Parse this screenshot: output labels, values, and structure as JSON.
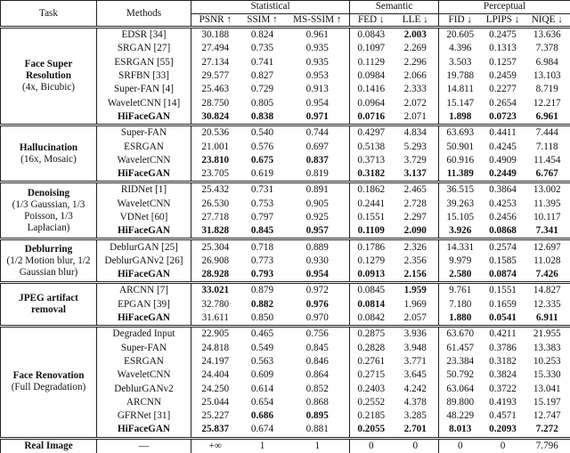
{
  "table": {
    "header": {
      "task": "Task",
      "methods": "Methods",
      "groups": [
        {
          "label": "Statistical",
          "columns": [
            "PSNR ↑",
            "SSIM ↑",
            "MS-SSIM ↑"
          ]
        },
        {
          "label": "Semantic",
          "columns": [
            "FED ↓",
            "LLE ↓"
          ]
        },
        {
          "label": "Perceptual",
          "columns": [
            "FID ↓",
            "LPIPS ↓",
            "NIQE ↓"
          ]
        }
      ]
    },
    "sections": [
      {
        "task": "Face Super Resolution",
        "detail": "(4x, Bicubic)",
        "rows": [
          {
            "method": "EDSR [34]",
            "values": [
              "30.188",
              "0.824",
              "0.961",
              "0.0843",
              "2.003",
              "20.605",
              "0.2475",
              "13.636"
            ],
            "bold": [
              5
            ]
          },
          {
            "method": "SRGAN [27]",
            "values": [
              "27.494",
              "0.735",
              "0.935",
              "0.1097",
              "2.269",
              "4.396",
              "0.1313",
              "7.378"
            ],
            "bold": []
          },
          {
            "method": "ESRGAN [55]",
            "values": [
              "27.134",
              "0.741",
              "0.935",
              "0.1129",
              "2.296",
              "3.503",
              "0.1257",
              "6.984"
            ],
            "bold": []
          },
          {
            "method": "SRFBN [33]",
            "values": [
              "29.577",
              "0.827",
              "0.953",
              "0.0984",
              "2.066",
              "19.788",
              "0.2459",
              "13.103"
            ],
            "bold": []
          },
          {
            "method": "Super-FAN [4]",
            "values": [
              "25.463",
              "0.729",
              "0.913",
              "0.1416",
              "2.333",
              "14.811",
              "0.2277",
              "8.719"
            ],
            "bold": []
          },
          {
            "method": "WaveletCNN [14]",
            "values": [
              "28.750",
              "0.805",
              "0.954",
              "0.0964",
              "2.072",
              "15.147",
              "0.2654",
              "12.217"
            ],
            "bold": []
          },
          {
            "method": "HiFaceGAN",
            "values": [
              "30.824",
              "0.838",
              "0.971",
              "0.0716",
              "2.071",
              "1.898",
              "0.0723",
              "6.961"
            ],
            "bold": [
              0,
              1,
              2,
              3,
              4,
              6,
              7,
              8
            ]
          }
        ]
      },
      {
        "task": "Hallucination",
        "detail": "(16x, Mosaic)",
        "rows": [
          {
            "method": "Super-FAN",
            "values": [
              "20.536",
              "0.540",
              "0.744",
              "0.4297",
              "4.834",
              "63.693",
              "0.4411",
              "7.444"
            ],
            "bold": []
          },
          {
            "method": "ESRGAN",
            "values": [
              "21.001",
              "0.576",
              "0.697",
              "0.5138",
              "5.293",
              "50.901",
              "0.4245",
              "7.118"
            ],
            "bold": []
          },
          {
            "method": "WaveletCNN",
            "values": [
              "23.810",
              "0.675",
              "0.837",
              "0.3713",
              "3.729",
              "60.916",
              "0.4909",
              "11.454"
            ],
            "bold": [
              1,
              2,
              3
            ]
          },
          {
            "method": "HiFaceGAN",
            "values": [
              "23.705",
              "0.619",
              "0.819",
              "0.3182",
              "3.137",
              "11.389",
              "0.2449",
              "6.767"
            ],
            "bold": [
              0,
              4,
              5,
              6,
              7,
              8
            ]
          }
        ]
      },
      {
        "task": "Denoising",
        "detail": "(1/3 Gaussian, 1/3 Poisson, 1/3 Laplacian)",
        "rows": [
          {
            "method": "RIDNet [1]",
            "values": [
              "25.432",
              "0.731",
              "0.891",
              "0.1862",
              "2.465",
              "36.515",
              "0.3864",
              "13.002"
            ],
            "bold": []
          },
          {
            "method": "WaveletCNN",
            "values": [
              "26.530",
              "0.753",
              "0.905",
              "0.2441",
              "2.728",
              "39.263",
              "0.4253",
              "11.395"
            ],
            "bold": []
          },
          {
            "method": "VDNet [60]",
            "values": [
              "27.718",
              "0.797",
              "0.925",
              "0.1551",
              "2.297",
              "15.105",
              "0.2456",
              "10.117"
            ],
            "bold": []
          },
          {
            "method": "HiFaceGAN",
            "values": [
              "31.828",
              "0.845",
              "0.957",
              "0.1109",
              "2.090",
              "3.926",
              "0.0868",
              "7.341"
            ],
            "bold": [
              0,
              1,
              2,
              3,
              4,
              5,
              6,
              7,
              8
            ]
          }
        ]
      },
      {
        "task": "Deblurring",
        "detail": "(1/2 Motion blur, 1/2 Gaussian blur)",
        "rows": [
          {
            "method": "DeblurGAN [25]",
            "values": [
              "25.304",
              "0.718",
              "0.889",
              "0.1786",
              "2.326",
              "14.331",
              "0.2574",
              "12.697"
            ],
            "bold": []
          },
          {
            "method": "DeblurGANv2 [26]",
            "values": [
              "26.908",
              "0.773",
              "0.930",
              "0.1279",
              "2.356",
              "9.979",
              "0.1585",
              "11.028"
            ],
            "bold": []
          },
          {
            "method": "HiFaceGAN",
            "values": [
              "28.928",
              "0.793",
              "0.954",
              "0.0913",
              "2.156",
              "2.580",
              "0.0874",
              "7.426"
            ],
            "bold": [
              0,
              1,
              2,
              3,
              4,
              5,
              6,
              7,
              8
            ]
          }
        ]
      },
      {
        "task": "JPEG artifact removal",
        "rows": [
          {
            "method": "ARCNN [7]",
            "values": [
              "33.021",
              "0.879",
              "0.972",
              "0.0845",
              "1.959",
              "9.761",
              "0.1551",
              "14.827"
            ],
            "bold": [
              1,
              5
            ]
          },
          {
            "method": "EPGAN [39]",
            "values": [
              "32.780",
              "0.882",
              "0.976",
              "0.0814",
              "1.969",
              "7.180",
              "0.1659",
              "12.335"
            ],
            "bold": [
              2,
              3,
              4
            ]
          },
          {
            "method": "HiFaceGAN",
            "values": [
              "31.611",
              "0.850",
              "0.970",
              "0.0842",
              "2.057",
              "1.880",
              "0.0541",
              "6.911"
            ],
            "bold": [
              0,
              6,
              7,
              8
            ]
          }
        ]
      },
      {
        "task": "Face Renovation",
        "detail": "(Full Degradation)",
        "rows": [
          {
            "method": "Degraded Input",
            "values": [
              "22.905",
              "0.465",
              "0.756",
              "0.2875",
              "3.936",
              "63.670",
              "0.4211",
              "21.955"
            ],
            "bold": []
          },
          {
            "method": "Super-FAN",
            "values": [
              "24.818",
              "0.549",
              "0.845",
              "0.2828",
              "3.948",
              "61.457",
              "0.3786",
              "13.383"
            ],
            "bold": []
          },
          {
            "method": "ESRGAN",
            "values": [
              "24.197",
              "0.563",
              "0.846",
              "0.2761",
              "3.771",
              "23.384",
              "0.3182",
              "10.253"
            ],
            "bold": []
          },
          {
            "method": "WaveletCNN",
            "values": [
              "24.404",
              "0.609",
              "0.864",
              "0.2715",
              "3.645",
              "50.792",
              "0.3824",
              "15.330"
            ],
            "bold": []
          },
          {
            "method": "DeblurGANv2",
            "values": [
              "24.250",
              "0.614",
              "0.852",
              "0.2403",
              "4.242",
              "63.064",
              "0.3722",
              "13.041"
            ],
            "bold": []
          },
          {
            "method": "ARCNN",
            "values": [
              "25.044",
              "0.654",
              "0.868",
              "0.2552",
              "4.378",
              "89.800",
              "0.4193",
              "15.197"
            ],
            "bold": []
          },
          {
            "method": "GFRNet [31]",
            "values": [
              "25.227",
              "0.686",
              "0.895",
              "0.2185",
              "3.285",
              "48.229",
              "0.4571",
              "12.747"
            ],
            "bold": [
              2,
              3
            ]
          },
          {
            "method": "HiFaceGAN",
            "values": [
              "25.837",
              "0.674",
              "0.881",
              "0.2055",
              "2.701",
              "8.013",
              "0.2093",
              "7.272"
            ],
            "bold": [
              0,
              1,
              4,
              5,
              6,
              7,
              8
            ]
          }
        ]
      },
      {
        "task": "Real Image",
        "rows": [
          {
            "method": "—",
            "values": [
              "+∞",
              "1",
              "1",
              "0",
              "0",
              "0",
              "0",
              "7.796"
            ],
            "bold": []
          }
        ]
      }
    ]
  }
}
